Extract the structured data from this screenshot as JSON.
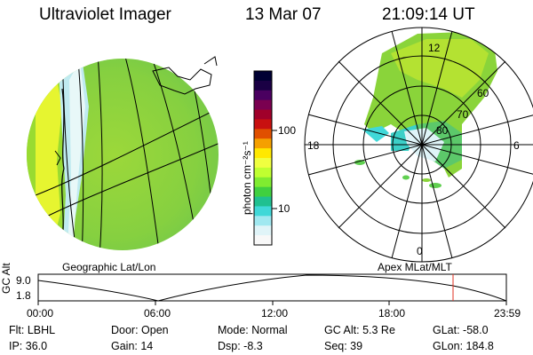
{
  "header": {
    "title": "Ultraviolet Imager",
    "date": "13 Mar 07",
    "time": "21:09:14 UT"
  },
  "colorbar": {
    "unit_label": "photon cm⁻²s⁻¹",
    "ticks": [
      "100",
      "10"
    ],
    "colors": [
      "#000033",
      "#1a0044",
      "#4a0060",
      "#7a0050",
      "#a0002a",
      "#c81010",
      "#e05000",
      "#f5a000",
      "#ffe800",
      "#f0ff40",
      "#c0ff30",
      "#80ec30",
      "#40d040",
      "#20c090",
      "#40d8d8",
      "#a0e8f0",
      "#e0f4f8",
      "#f8f8f8"
    ]
  },
  "left_panel": {
    "caption": "Geographic Lat/Lon"
  },
  "polar_plot": {
    "caption": "Apex MLat/MLT",
    "mlt_labels": {
      "top": "12",
      "left": "18",
      "right": "6",
      "bottom": "0"
    },
    "lat_labels": [
      "60",
      "70",
      "80"
    ]
  },
  "orbit_plot": {
    "ylabel": "GC Alt",
    "y_ticks": [
      "9.0",
      "1.8"
    ],
    "x_ticks": [
      "00:00",
      "06:00",
      "12:00",
      "18:00",
      "23:59"
    ],
    "marker_color": "#e03020"
  },
  "info": {
    "flt": "Flt: LBHL",
    "ip": "IP: 36.0",
    "door": "Door: Open",
    "gain": "Gain: 14",
    "mode": "Mode: Normal",
    "dsp": "Dsp:    -8.3",
    "gc_alt": "GC Alt: 5.3 Re",
    "seq": "Seq: 39",
    "glat": "GLat: -58.0",
    "glon": "GLon: 184.8"
  }
}
